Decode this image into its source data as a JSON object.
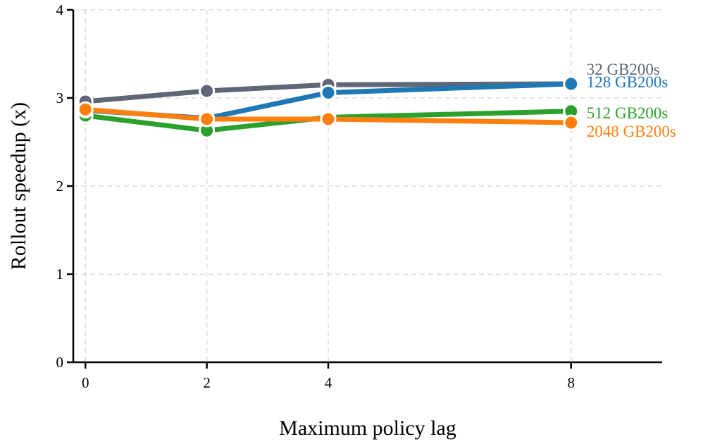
{
  "chart_data": {
    "type": "line",
    "xlabel": "Maximum policy lag",
    "ylabel": "Rollout speedup (x)",
    "x": [
      0,
      2,
      4,
      8
    ],
    "xticks": [
      "0",
      "2",
      "4",
      "8"
    ],
    "yticks": [
      "0",
      "1",
      "2",
      "3",
      "4"
    ],
    "xlim": [
      -0.2,
      9.5
    ],
    "ylim": [
      0,
      4
    ],
    "grid": true,
    "legend": "inline-labels-right",
    "series": [
      {
        "name": "32 GB200s",
        "color": "#5f6776",
        "values": [
          2.96,
          3.08,
          3.15,
          3.16
        ]
      },
      {
        "name": "128 GB200s",
        "color": "#1f77b4",
        "values": [
          2.86,
          2.77,
          3.06,
          3.16
        ]
      },
      {
        "name": "512 GB200s",
        "color": "#2ca02c",
        "values": [
          2.8,
          2.63,
          2.78,
          2.85
        ]
      },
      {
        "name": "2048 GB200s",
        "color": "#ff7f0e",
        "values": [
          2.87,
          2.76,
          2.76,
          2.72
        ]
      }
    ]
  }
}
